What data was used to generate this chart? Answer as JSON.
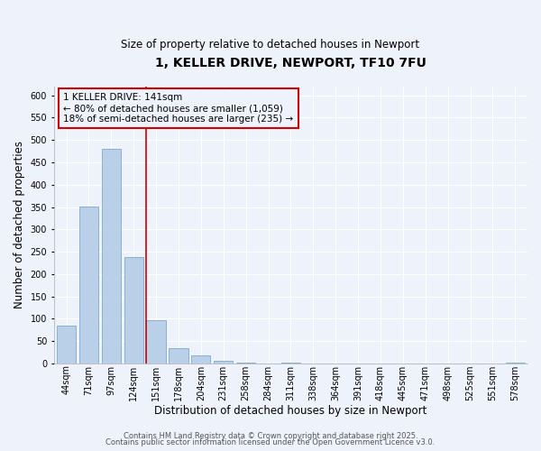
{
  "title": "1, KELLER DRIVE, NEWPORT, TF10 7FU",
  "subtitle": "Size of property relative to detached houses in Newport",
  "xlabel": "Distribution of detached houses by size in Newport",
  "ylabel": "Number of detached properties",
  "bar_labels": [
    "44sqm",
    "71sqm",
    "97sqm",
    "124sqm",
    "151sqm",
    "178sqm",
    "204sqm",
    "231sqm",
    "258sqm",
    "284sqm",
    "311sqm",
    "338sqm",
    "364sqm",
    "391sqm",
    "418sqm",
    "445sqm",
    "471sqm",
    "498sqm",
    "525sqm",
    "551sqm",
    "578sqm"
  ],
  "bar_values": [
    85,
    352,
    480,
    238,
    97,
    35,
    18,
    7,
    3,
    0,
    2,
    0,
    0,
    0,
    0,
    0,
    0,
    0,
    0,
    0,
    2
  ],
  "bar_color": "#bad0e8",
  "bar_edge_color": "#8ab0d0",
  "vline_color": "#cc0000",
  "vline_pos": 3.57,
  "annotation_text": "1 KELLER DRIVE: 141sqm\n← 80% of detached houses are smaller (1,059)\n18% of semi-detached houses are larger (235) →",
  "annotation_box_edgecolor": "#cc0000",
  "ylim": [
    0,
    620
  ],
  "yticks": [
    0,
    50,
    100,
    150,
    200,
    250,
    300,
    350,
    400,
    450,
    500,
    550,
    600
  ],
  "footer_line1": "Contains HM Land Registry data © Crown copyright and database right 2025.",
  "footer_line2": "Contains public sector information licensed under the Open Government Licence v3.0.",
  "bg_color": "#eef2fa",
  "grid_color": "#ffffff",
  "title_fontsize": 10,
  "subtitle_fontsize": 8.5,
  "xlabel_fontsize": 8.5,
  "ylabel_fontsize": 8.5,
  "tick_fontsize": 7,
  "annotation_fontsize": 7.5,
  "footer_fontsize": 6
}
